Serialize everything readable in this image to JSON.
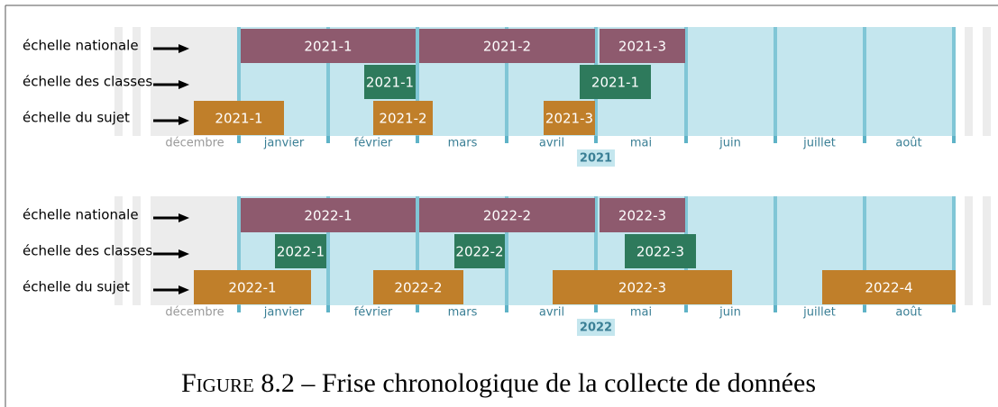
{
  "panels": [
    {
      "year": "2021",
      "months": [
        "décembre",
        "janvier",
        "février",
        "mars",
        "avril",
        "mai",
        "juin",
        "juillet",
        "août"
      ],
      "rows": [
        {
          "label": "échelle nationale",
          "bars": [
            "2021-1",
            "2021-2",
            "2021-3"
          ]
        },
        {
          "label": "échelle des classes",
          "bars": [
            "2021-1",
            "2021-1"
          ]
        },
        {
          "label": "échelle du sujet",
          "bars": [
            "2021-1",
            "2021-2",
            "2021-3"
          ]
        }
      ]
    },
    {
      "year": "2022",
      "months": [
        "décembre",
        "janvier",
        "février",
        "mars",
        "avril",
        "mai",
        "juin",
        "juillet",
        "août"
      ],
      "rows": [
        {
          "label": "échelle nationale",
          "bars": [
            "2022-1",
            "2022-2",
            "2022-3"
          ]
        },
        {
          "label": "échelle des classes",
          "bars": [
            "2022-1",
            "2022-2",
            "2022-3"
          ]
        },
        {
          "label": "échelle du sujet",
          "bars": [
            "2022-1",
            "2022-2",
            "2022-3",
            "2022-4"
          ]
        }
      ]
    }
  ],
  "caption": {
    "label": "Figure 8.2",
    "text": "– Frise chronologique de la collecte de données"
  }
}
